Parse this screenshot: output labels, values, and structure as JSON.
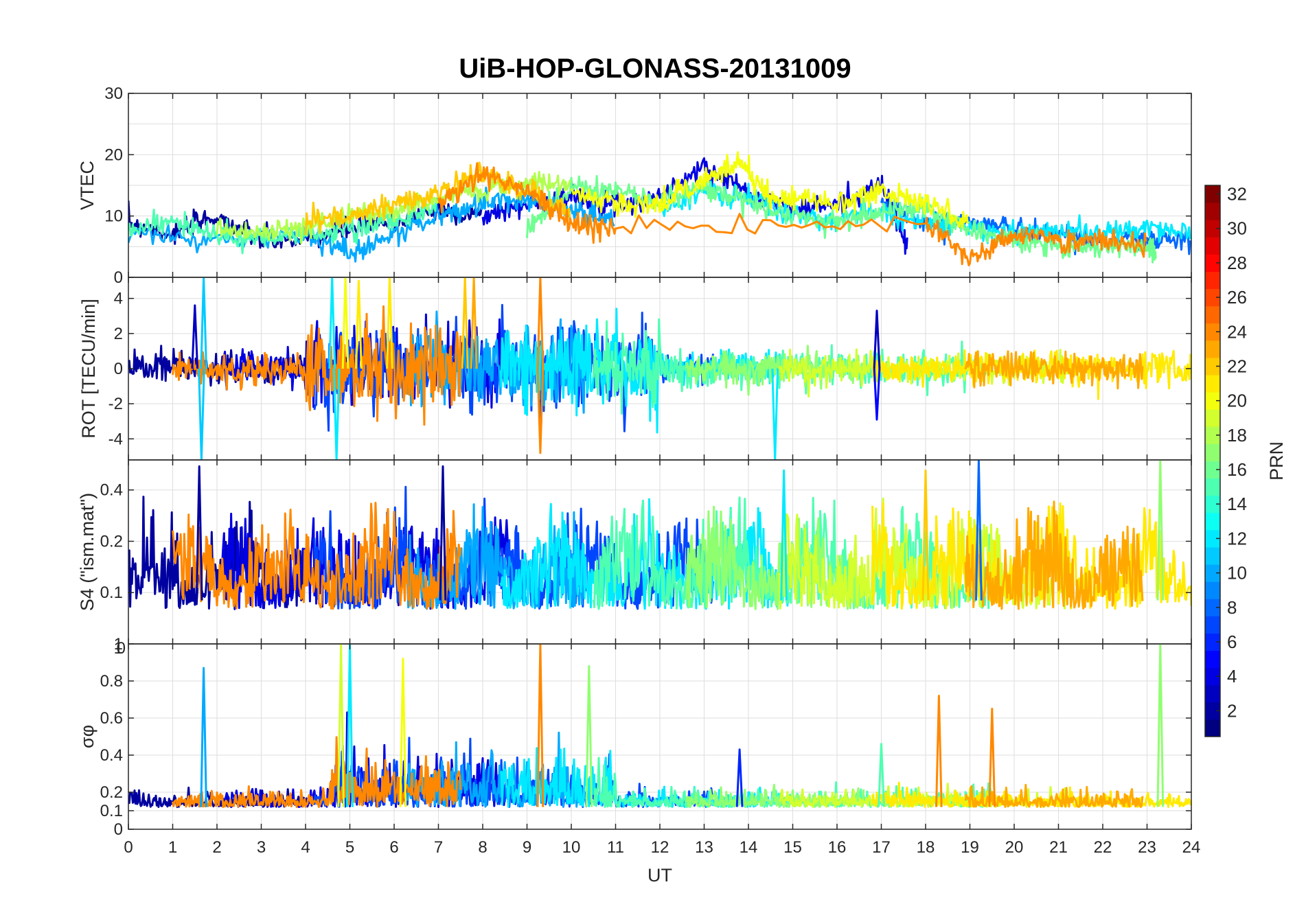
{
  "chart_data": [
    {
      "type": "line",
      "title": "UiB-HOP-GLONASS-20131009",
      "ylabel": "VTEC",
      "xlim": [
        0,
        24
      ],
      "ylim": [
        0,
        30
      ],
      "yticks": [
        0,
        10,
        20,
        30
      ],
      "ytick_labels": [
        "0",
        "10",
        "20",
        "30"
      ],
      "grid": true,
      "series_note": "PRN-colored tracks",
      "tracks": [
        {
          "prn": 2,
          "x": [
            0,
            1,
            2,
            3,
            4,
            5,
            6,
            7,
            8
          ],
          "y": [
            9,
            7,
            10,
            6,
            6,
            8,
            9,
            11,
            10
          ]
        },
        {
          "prn": 4,
          "x": [
            8,
            9,
            10,
            11,
            12,
            13,
            14,
            15,
            16,
            17,
            17.6
          ],
          "y": [
            10,
            12,
            13,
            12,
            13,
            18,
            14,
            11,
            12,
            15,
            5
          ]
        },
        {
          "prn": 8,
          "x": [
            17,
            18,
            19,
            20,
            21,
            22,
            23,
            24
          ],
          "y": [
            12,
            9,
            9,
            8,
            7,
            6,
            6,
            6
          ]
        },
        {
          "prn": 10,
          "x": [
            0,
            2,
            4,
            5,
            6,
            7,
            8,
            9,
            10,
            11
          ],
          "y": [
            7,
            6,
            7,
            4,
            7,
            10,
            12,
            13,
            11,
            9
          ]
        },
        {
          "prn": 12,
          "x": [
            12,
            13,
            14,
            15,
            16,
            17,
            18,
            19,
            20,
            21,
            22,
            23,
            24
          ],
          "y": [
            11,
            14,
            13,
            10,
            9,
            11,
            9,
            8,
            7,
            8,
            7,
            8,
            7
          ]
        },
        {
          "prn": 15,
          "x": [
            0,
            1,
            2,
            3,
            4,
            5,
            6,
            7
          ],
          "y": [
            8,
            9,
            7,
            6,
            7,
            8,
            9,
            12
          ]
        },
        {
          "prn": 16,
          "x": [
            9,
            10,
            11,
            12,
            13,
            14,
            15,
            16,
            17,
            18,
            19,
            20,
            21,
            22,
            23,
            23.2
          ],
          "y": [
            8,
            15,
            14,
            12,
            15,
            12,
            10,
            9,
            11,
            11,
            8,
            6,
            5,
            5,
            5,
            4
          ]
        },
        {
          "prn": 18,
          "x": [
            2,
            3,
            4,
            5,
            6,
            7,
            8,
            9,
            10
          ],
          "y": [
            8,
            7,
            8,
            10,
            11,
            13,
            14,
            16,
            15
          ]
        },
        {
          "prn": 20,
          "x": [
            10,
            11,
            12,
            13,
            13.8,
            14.5,
            15,
            16,
            17,
            18,
            19
          ],
          "y": [
            14,
            12,
            12,
            16,
            19,
            13,
            13,
            12,
            14,
            12,
            9
          ]
        },
        {
          "prn": 22,
          "x": [
            4,
            5,
            6,
            7,
            8,
            9,
            10
          ],
          "y": [
            9,
            10,
            12,
            14,
            17,
            14,
            10
          ]
        },
        {
          "prn": 24,
          "x": [
            7,
            8,
            9,
            10,
            11,
            18,
            19,
            20,
            21,
            22,
            23
          ],
          "y": [
            12,
            17,
            14,
            9,
            8,
            9,
            3,
            7,
            6,
            6,
            5
          ]
        }
      ]
    },
    {
      "type": "line",
      "ylabel": "ROT [TECU/min]",
      "xlim": [
        0,
        24
      ],
      "ylim": [
        -5.2,
        5.2
      ],
      "yticks": [
        -4,
        -2,
        0,
        2,
        4
      ],
      "ytick_labels": [
        "-4",
        "-2",
        "0",
        "2",
        "4"
      ],
      "grid": true,
      "series_note": "Rate of TEC noise around zero, peaks",
      "spikes": [
        {
          "x": 1.5,
          "y": 3.6,
          "prn": 3
        },
        {
          "x": 1.65,
          "y": -5.2,
          "prn": 11
        },
        {
          "x": 1.7,
          "y": 5.2,
          "prn": 11
        },
        {
          "x": 4.6,
          "y": 5.2,
          "prn": 12
        },
        {
          "x": 4.7,
          "y": -5.2,
          "prn": 12
        },
        {
          "x": 4.9,
          "y": 5.2,
          "prn": 20
        },
        {
          "x": 5.2,
          "y": 5.0,
          "prn": 21
        },
        {
          "x": 5.9,
          "y": 5.2,
          "prn": 21
        },
        {
          "x": 7.6,
          "y": 5.2,
          "prn": 22
        },
        {
          "x": 7.8,
          "y": 5.2,
          "prn": 23
        },
        {
          "x": 9.3,
          "y": 5.2,
          "prn": 24
        },
        {
          "x": 9.3,
          "y": -4.8,
          "prn": 24
        },
        {
          "x": 14.6,
          "y": -5.2,
          "prn": 12
        },
        {
          "x": 16.9,
          "y": 3.3,
          "prn": 3
        },
        {
          "x": 16.9,
          "y": -2.9,
          "prn": 5
        }
      ]
    },
    {
      "type": "line",
      "ylabel": "S4 (\"ism.mat\")",
      "xlim": [
        0,
        24
      ],
      "ylim": [
        0.05,
        0.6
      ],
      "yscale": "log",
      "yticks": [
        0.1,
        0.2,
        0.4
      ],
      "ytick_labels": [
        "0.1",
        "0.2",
        "0.4"
      ],
      "grid": true,
      "series_note": "Amplitude scintillation index",
      "peaks": [
        {
          "x": 1.6,
          "y": 0.55,
          "prn": 2
        },
        {
          "x": 7.1,
          "y": 0.55,
          "prn": 2
        },
        {
          "x": 14.8,
          "y": 0.52,
          "prn": 12
        },
        {
          "x": 18.0,
          "y": 0.52,
          "prn": 22
        },
        {
          "x": 19.2,
          "y": 0.6,
          "prn": 8
        },
        {
          "x": 23.3,
          "y": 0.6,
          "prn": 17
        }
      ]
    },
    {
      "type": "line",
      "ylabel": "σφ",
      "xlabel": "UT",
      "xlim": [
        0,
        24
      ],
      "ylim": [
        0,
        1
      ],
      "yticks": [
        0,
        0.1,
        0.2,
        0.4,
        0.6,
        0.8,
        1
      ],
      "ytick_labels": [
        "0",
        "0.1",
        "0.2",
        "0.4",
        "0.6",
        "0.8",
        "1"
      ],
      "xticks": [
        0,
        1,
        2,
        3,
        4,
        5,
        6,
        7,
        8,
        9,
        10,
        11,
        12,
        13,
        14,
        15,
        16,
        17,
        18,
        19,
        20,
        21,
        22,
        23,
        24
      ],
      "xtick_labels": [
        "0",
        "1",
        "2",
        "3",
        "4",
        "5",
        "6",
        "7",
        "8",
        "9",
        "10",
        "11",
        "12",
        "13",
        "14",
        "15",
        "16",
        "17",
        "18",
        "19",
        "20",
        "21",
        "22",
        "23",
        "24"
      ],
      "grid": true,
      "series_note": "Phase scintillation index",
      "peaks": [
        {
          "x": 1.7,
          "y": 0.87,
          "prn": 10
        },
        {
          "x": 4.8,
          "y": 1.0,
          "prn": 19
        },
        {
          "x": 5.0,
          "y": 1.0,
          "prn": 12
        },
        {
          "x": 6.2,
          "y": 0.92,
          "prn": 20
        },
        {
          "x": 9.3,
          "y": 1.0,
          "prn": 24
        },
        {
          "x": 10.4,
          "y": 0.88,
          "prn": 17
        },
        {
          "x": 13.8,
          "y": 0.43,
          "prn": 6
        },
        {
          "x": 17.0,
          "y": 0.46,
          "prn": 15
        },
        {
          "x": 18.3,
          "y": 0.72,
          "prn": 24
        },
        {
          "x": 19.5,
          "y": 0.65,
          "prn": 24
        },
        {
          "x": 23.3,
          "y": 1.0,
          "prn": 17
        }
      ]
    }
  ],
  "colorbar": {
    "label": "PRN",
    "min": 1,
    "max": 32,
    "ticks": [
      2,
      4,
      6,
      8,
      10,
      12,
      14,
      16,
      18,
      20,
      22,
      24,
      26,
      28,
      30,
      32
    ],
    "tick_labels": [
      "2",
      "4",
      "6",
      "8",
      "10",
      "12",
      "14",
      "16",
      "18",
      "20",
      "22",
      "24",
      "26",
      "28",
      "30",
      "32"
    ],
    "colormap": "jet"
  },
  "panel_fragments": {
    "s4_top_label": "1",
    "sigma_top_label": "0"
  }
}
